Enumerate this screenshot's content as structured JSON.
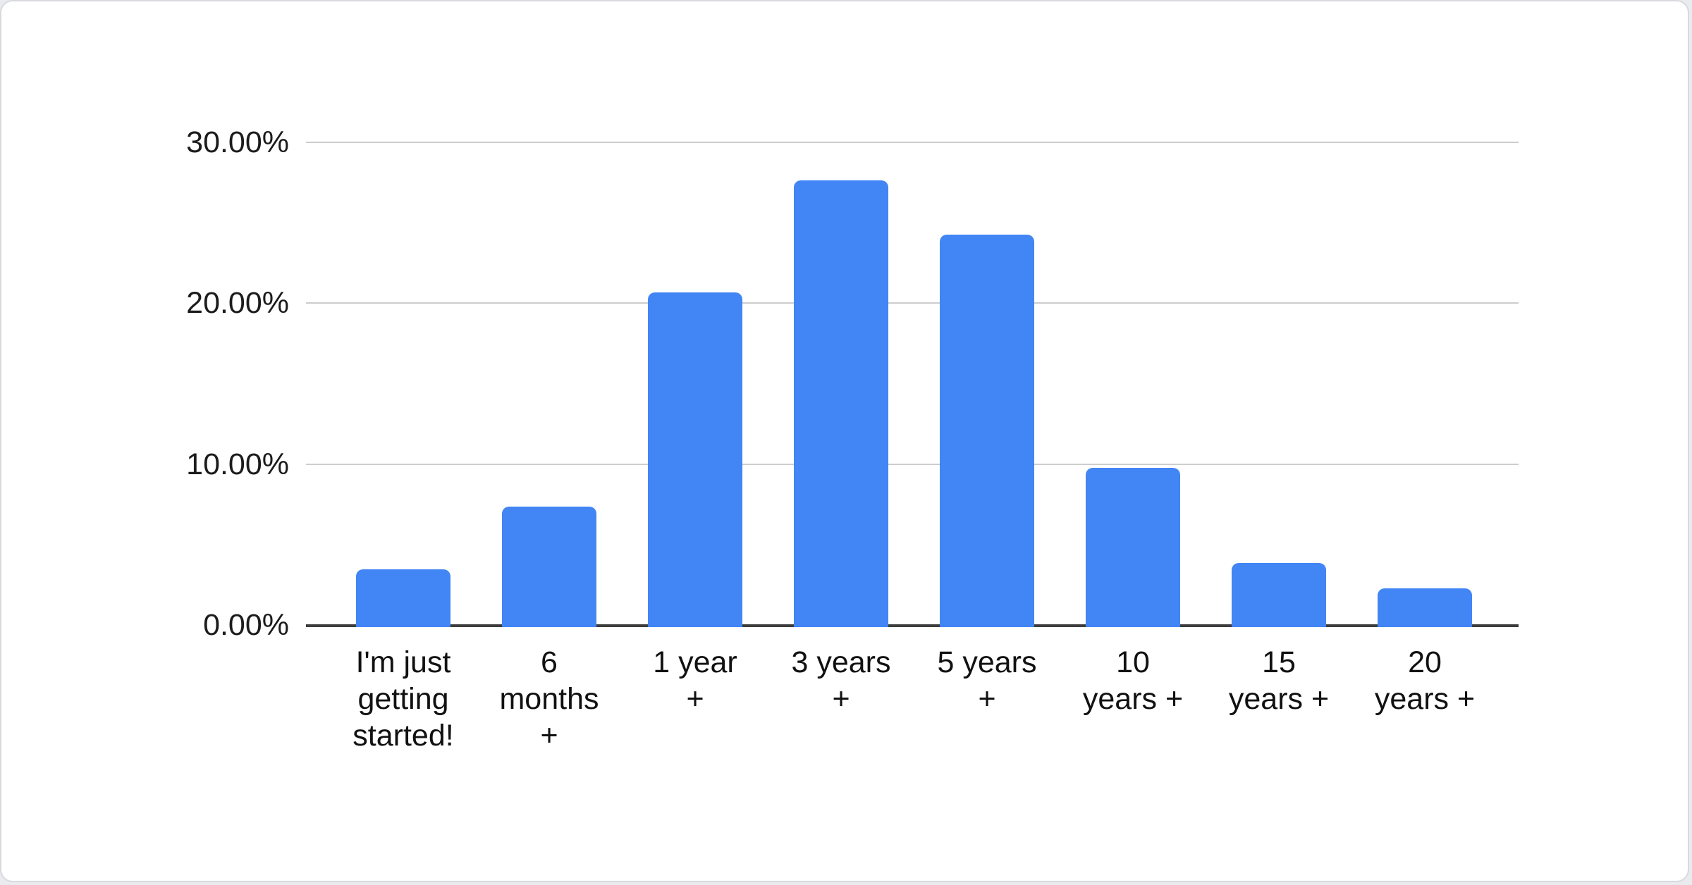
{
  "page": {
    "background_color": "#eaebef",
    "card_background": "#ffffff",
    "card_border_color": "#d8dade"
  },
  "chart_data": {
    "type": "bar",
    "title": "",
    "xlabel": "",
    "ylabel": "",
    "categories": [
      "I'm just getting started!",
      "6 months +",
      "1 year +",
      "3 years +",
      "5 years +",
      "10 years +",
      "15 years +",
      "20 years +"
    ],
    "category_labels_wrapped": [
      "I'm just\ngetting\nstarted!",
      "6\nmonths\n+",
      "1 year\n+",
      "3 years\n+",
      "5 years\n+",
      "10\nyears +",
      "15\nyears +",
      "20\nyears +"
    ],
    "values": [
      3.5,
      7.4,
      20.7,
      27.7,
      24.3,
      9.8,
      3.9,
      2.3
    ],
    "unit": "percent",
    "ylim": [
      0,
      30
    ],
    "y_ticks": [
      0,
      10,
      20,
      30
    ],
    "y_tick_labels": [
      "0.00%",
      "10.00%",
      "20.00%",
      "30.00%"
    ],
    "grid": true,
    "legend": "none",
    "bar_color": "#4285f4",
    "gridline_color": "#cdcdcd",
    "axis_line_color": "#3d3d3d",
    "tick_label_color": "#1c1c1c",
    "category_label_color": "#111111"
  }
}
